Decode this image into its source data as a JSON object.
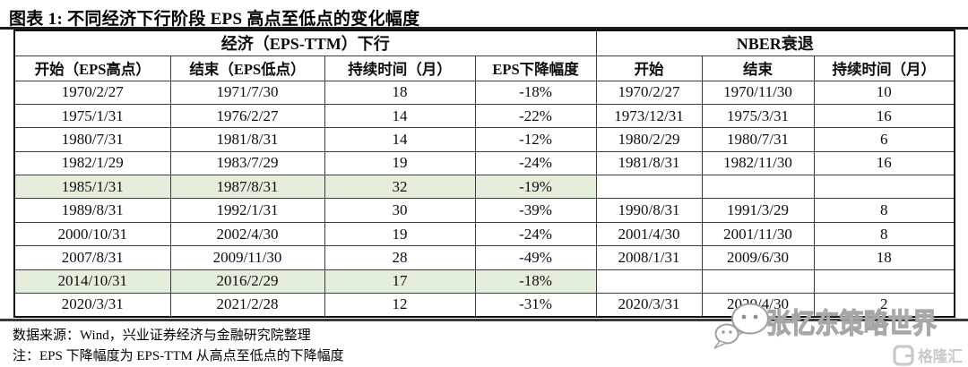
{
  "title": "图表 1: 不同经济下行阶段 EPS 高点至低点的变化幅度",
  "table": {
    "group_headers": {
      "left": "经济（EPS-TTM）下行",
      "right": "NBER衰退"
    },
    "columns": [
      "开始（EPS高点）",
      "结束（EPS低点）",
      "持续时间（月）",
      "EPS下降幅度",
      "开始",
      "结束",
      "持续时间（月）"
    ],
    "rows": [
      {
        "cells": [
          "1970/2/27",
          "1971/7/30",
          "18",
          "-18%",
          "1970/2/27",
          "1970/11/30",
          "10"
        ],
        "highlight": false
      },
      {
        "cells": [
          "1975/1/31",
          "1976/2/27",
          "14",
          "-22%",
          "1973/12/31",
          "1975/3/31",
          "16"
        ],
        "highlight": false
      },
      {
        "cells": [
          "1980/7/31",
          "1981/8/31",
          "14",
          "-12%",
          "1980/2/29",
          "1980/7/31",
          "6"
        ],
        "highlight": false
      },
      {
        "cells": [
          "1982/1/29",
          "1983/7/29",
          "19",
          "-24%",
          "1981/8/31",
          "1982/11/30",
          "16"
        ],
        "highlight": false
      },
      {
        "cells": [
          "1985/1/31",
          "1987/8/31",
          "32",
          "-19%",
          "",
          "",
          ""
        ],
        "highlight": true
      },
      {
        "cells": [
          "1989/8/31",
          "1992/1/31",
          "30",
          "-39%",
          "1990/8/31",
          "1991/3/29",
          "8"
        ],
        "highlight": false
      },
      {
        "cells": [
          "2000/10/31",
          "2002/4/30",
          "19",
          "-24%",
          "2001/4/30",
          "2001/11/30",
          "8"
        ],
        "highlight": false
      },
      {
        "cells": [
          "2007/8/31",
          "2009/11/30",
          "28",
          "-49%",
          "2008/1/31",
          "2009/6/30",
          "18"
        ],
        "highlight": false
      },
      {
        "cells": [
          "2014/10/31",
          "2016/2/29",
          "17",
          "-18%",
          "",
          "",
          ""
        ],
        "highlight": true
      },
      {
        "cells": [
          "2020/3/31",
          "2021/2/28",
          "12",
          "-31%",
          "2020/3/31",
          "2020/4/30",
          "2"
        ],
        "highlight": false
      }
    ],
    "highlight_color": "#e3eedb"
  },
  "footer": {
    "source": "数据来源：Wind，兴业证券经济与金融研究院整理",
    "note": "注：EPS 下降幅度为 EPS-TTM 从高点至低点的下降幅度"
  },
  "watermark": {
    "text": "张忆东策略世界",
    "logo_text": "格隆汇",
    "icon": "wechat-bubbles-icon",
    "outline_color": "#a6a6a6",
    "logo_color": "#c9c9c9"
  }
}
